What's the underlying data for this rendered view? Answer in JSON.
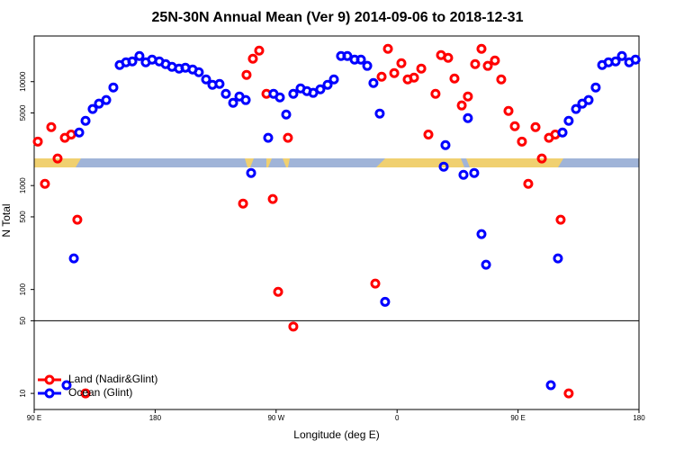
{
  "chart_data": {
    "type": "scatter",
    "title": "25N-30N Annual Mean (Ver 9)   2014-09-06 to 2018-12-31",
    "x_label": "Longitude (deg E)",
    "y_label": "N Total",
    "xlim": [
      90,
      540
    ],
    "ylim": [
      7,
      27500
    ],
    "ylog": true,
    "legend": "lower-left",
    "hline": 50,
    "xticks": [
      {
        "value": 90,
        "label": "90 E"
      },
      180,
      {
        "value": 270,
        "label": "90 W"
      },
      {
        "value": 360,
        "label": "0"
      },
      {
        "value": 450,
        "label": "90 E"
      },
      {
        "value": 540,
        "label": "180"
      }
    ],
    "yticks": [
      10,
      50,
      100,
      500,
      1000,
      5000,
      10000
    ],
    "series": [
      {
        "name": "Land (Nadir&Glint)",
        "color": "#ff0000",
        "x": [
          92.7,
          98.0,
          102.7,
          107.4,
          112.8,
          117.5,
          122.1,
          128.2,
          245.4,
          248.0,
          252.7,
          257.4,
          262.8,
          267.5,
          271.5,
          278.8,
          282.8,
          343.8,
          348.5,
          353.2,
          357.9,
          363.2,
          367.9,
          372.6,
          378.0,
          383.3,
          388.6,
          392.7,
          398.0,
          402.7,
          408.1,
          412.7,
          418.1,
          422.8,
          427.5,
          432.8,
          437.5,
          442.9,
          447.6,
          452.9,
          457.6,
          463.0,
          467.7,
          473.0,
          477.7,
          481.7,
          487.7
        ],
        "values": [
          2650,
          1040,
          3650,
          1820,
          2880,
          3100,
          469,
          10,
          671,
          11620,
          16630,
          19900,
          7640,
          742,
          95,
          2880,
          44,
          114,
          11160,
          20700,
          12080,
          15040,
          10510,
          10940,
          13360,
          3100,
          7640,
          17990,
          16960,
          10720,
          5900,
          7200,
          14750,
          20700,
          14190,
          15970,
          10510,
          5230,
          3725,
          2650,
          1040,
          3650,
          1820,
          2880,
          3100,
          469,
          10
        ]
      },
      {
        "name": "Ocean (Glint)",
        "color": "#0000ff",
        "x": [
          114.1,
          119.5,
          123.5,
          128.2,
          133.5,
          138.2,
          143.6,
          148.9,
          153.6,
          158.3,
          163.0,
          168.3,
          173.0,
          177.7,
          183.1,
          187.8,
          192.5,
          197.8,
          202.5,
          207.9,
          212.5,
          217.9,
          222.6,
          227.9,
          232.6,
          238.0,
          242.7,
          247.4,
          251.4,
          264.1,
          268.1,
          272.8,
          277.5,
          282.8,
          288.2,
          292.9,
          297.6,
          302.9,
          308.3,
          313.0,
          318.3,
          323.0,
          328.4,
          333.1,
          337.8,
          342.4,
          347.1,
          351.1,
          394.7,
          396.0,
          409.4,
          412.7,
          417.4,
          422.8,
          426.2,
          474.4,
          479.7,
          483.1,
          487.7,
          493.1,
          497.8,
          502.5,
          507.8,
          512.6,
          517.3,
          522.6,
          527.3,
          532.7,
          537.4
        ],
        "values": [
          12,
          199,
          3240,
          4200,
          5450,
          6140,
          6650,
          8790,
          14460,
          15350,
          15660,
          17650,
          15350,
          16300,
          15660,
          14750,
          13900,
          13360,
          13620,
          13090,
          12330,
          10510,
          9330,
          9510,
          7640,
          6260,
          7200,
          6650,
          1322,
          2880,
          7640,
          7050,
          4830,
          7640,
          8610,
          8110,
          7800,
          8440,
          9330,
          10510,
          17650,
          17650,
          16300,
          16300,
          14190,
          9700,
          4930,
          76,
          1520,
          2450,
          1270,
          4460,
          1322,
          341,
          173,
          12,
          199,
          3240,
          4200,
          5450,
          6140,
          6650,
          8790,
          14460,
          15350,
          15660,
          17650,
          15350,
          16300
        ]
      }
    ]
  }
}
